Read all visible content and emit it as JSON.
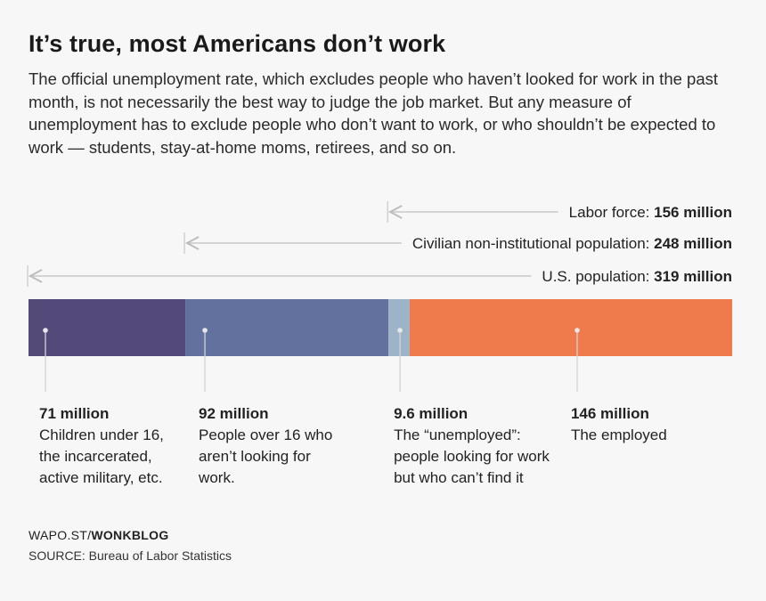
{
  "title": "It’s true, most Americans don’t work",
  "subtitle": "The official unemployment rate, which excludes people who haven’t looked for work in the past month, is not necessarily the best way to judge the job market. But any measure of unemployment has to exclude people who don’t want to work, or who shouldn’t be expected to work — students, stay-at-home moms, retirees, and so on.",
  "footer": {
    "prefix": "WAPO.ST/",
    "brand": "WONKBLOG",
    "source": "SOURCE: Bureau of Labor Statistics"
  },
  "chart_data": {
    "type": "stacked-bar",
    "unit": "million",
    "total": 318.6,
    "segments": [
      {
        "value_label": "71 million",
        "value": 71,
        "desc": "Children under 16, the incarcerated, active military, etc.",
        "color": "#544a7a"
      },
      {
        "value_label": "92 million",
        "value": 92,
        "desc": "People over 16 who aren’t looking for work.",
        "color": "#63719f"
      },
      {
        "value_label": "9.6 million",
        "value": 9.6,
        "desc": "The “unemployed”: people looking for work but who can’t find it",
        "color": "#9db3c8"
      },
      {
        "value_label": "146 million",
        "value": 146,
        "desc": "The employed",
        "color": "#ef7b4c"
      }
    ],
    "brackets": [
      {
        "label": "Labor force: ",
        "value_label": "156 million",
        "value": 156
      },
      {
        "label": "Civilian non-institutional population: ",
        "value_label": "248 million",
        "value": 248
      },
      {
        "label": "U.S. population: ",
        "value_label": "319 million",
        "value": 319
      }
    ]
  }
}
